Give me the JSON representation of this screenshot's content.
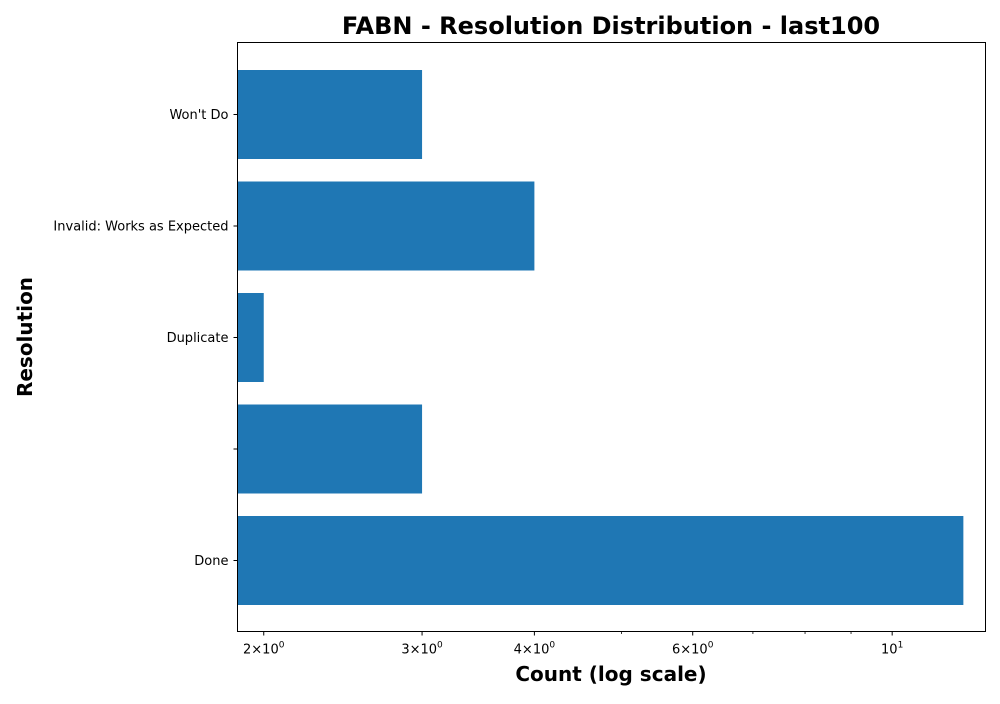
{
  "chart_data": {
    "type": "bar",
    "orientation": "horizontal",
    "title": "FABN - Resolution Distribution - last100",
    "xlabel": "Count (log scale)",
    "ylabel": "Resolution",
    "x_scale": "log",
    "xlim": [
      1.87,
      12.7
    ],
    "grid": false,
    "categories": [
      "Done",
      "",
      "Duplicate",
      "Invalid: Works as Expected",
      "Won't Do"
    ],
    "values": [
      12,
      3,
      2,
      4,
      3
    ],
    "color": "#1f77b4",
    "x_major_ticks": [
      {
        "value": 2,
        "base": "2",
        "exp": "0"
      },
      {
        "value": 3,
        "base": "3",
        "exp": "0"
      },
      {
        "value": 4,
        "base": "4",
        "exp": "0"
      },
      {
        "value": 6,
        "base": "6",
        "exp": "0"
      },
      {
        "value": 10,
        "base": "",
        "exp": "1"
      }
    ],
    "x_minor_ticks": [
      5,
      7,
      8,
      9
    ]
  }
}
